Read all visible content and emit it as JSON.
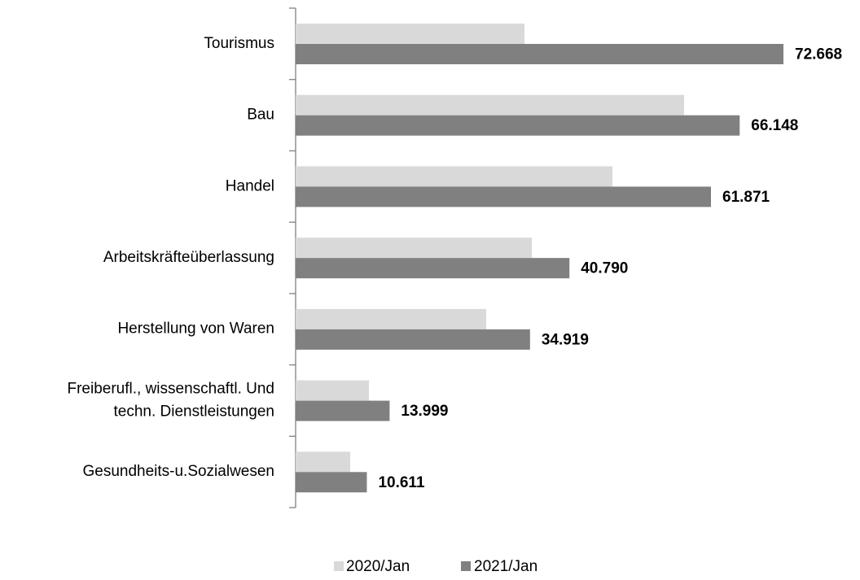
{
  "chart_data": {
    "type": "hbar",
    "categories": [
      "Tourismus",
      "Bau",
      "Handel",
      "Arbeitskräfteüberlassung",
      "Herstellung von Waren",
      "Freiberufl., wissenschaftl. Und\ntechn. Dienstleistungen",
      "Gesundheits-u.Sozialwesen"
    ],
    "series": [
      {
        "name": "2020/Jan",
        "color": "#d9d9d9",
        "values": [
          34090,
          57870,
          47190,
          35180,
          28390,
          10920,
          8130
        ]
      },
      {
        "name": "2021/Jan",
        "color": "#808080",
        "values": [
          72668,
          66148,
          61871,
          40790,
          34919,
          13999,
          10611
        ],
        "value_labels": [
          "72.668",
          "66.148",
          "61.871",
          "40.790",
          "34.919",
          "13.999",
          "10.611"
        ]
      }
    ],
    "legend": "bottom"
  }
}
